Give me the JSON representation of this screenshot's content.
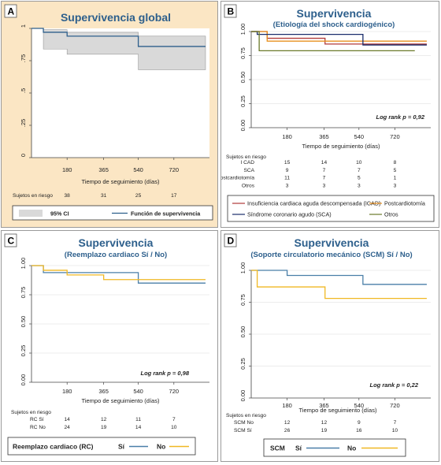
{
  "chart_data": [
    {
      "panel": "A",
      "type": "line",
      "title": "Supervivencia global",
      "xlabel": "Tiempo de seguimiento (días)",
      "xlim": [
        0,
        900
      ],
      "ylim": [
        0,
        1
      ],
      "xticks": [
        180,
        365,
        540,
        720
      ],
      "yticks": [
        "0",
        ".25",
        ".5",
        ".75",
        "1"
      ],
      "ytick_values": [
        0,
        0.25,
        0.5,
        0.75,
        1
      ],
      "series": [
        {
          "name": "Función de supervivencia",
          "color": "#2d5f8c",
          "x": [
            0,
            60,
            60,
            180,
            180,
            540,
            540,
            880
          ],
          "y": [
            1,
            1,
            0.97,
            0.97,
            0.94,
            0.94,
            0.86,
            0.86
          ]
        }
      ],
      "ci": {
        "name": "95% CI",
        "color": "#d9d9d9",
        "x": [
          0,
          60,
          60,
          180,
          180,
          540,
          540,
          880
        ],
        "lower": [
          1,
          1,
          0.84,
          0.84,
          0.8,
          0.8,
          0.68,
          0.68
        ],
        "upper": [
          1,
          1,
          0.99,
          0.99,
          0.97,
          0.97,
          0.94,
          0.94
        ]
      },
      "risk_table": {
        "title": "Sujetos en riesgo",
        "rows": [
          {
            "label": "",
            "values": [
              "38",
              "31",
              "25",
              "17"
            ]
          }
        ]
      },
      "legend": [
        "95% CI",
        "Función de supervivencia"
      ]
    },
    {
      "panel": "B",
      "type": "line",
      "title": "Supervivencia",
      "subtitle": "(Etiología del shock cardiogénico)",
      "xlabel": "Tiempo de seguimiento (días)",
      "xlim": [
        0,
        900
      ],
      "ylim": [
        0,
        1
      ],
      "xticks": [
        180,
        365,
        540,
        720
      ],
      "yticks": [
        "0.00",
        "0.25",
        "0.50",
        "0.75",
        "1.00"
      ],
      "ytick_values": [
        0,
        0.25,
        0.5,
        0.75,
        1
      ],
      "annotation": "Log rank p = 0,92",
      "series": [
        {
          "name": "Insuficiencia cardiaca aguda descompensada (ICAD)",
          "color": "#b03a3a",
          "x": [
            0,
            80,
            80,
            370,
            370,
            880
          ],
          "y": [
            1,
            1,
            0.93,
            0.93,
            0.87,
            0.87
          ]
        },
        {
          "name": "Postcardiotomía",
          "color": "#e8901e",
          "x": [
            0,
            80,
            80,
            880
          ],
          "y": [
            1,
            1,
            0.9,
            0.9
          ]
        },
        {
          "name": "Síndrome coronario agudo (SCA)",
          "color": "#1a2d6b",
          "x": [
            0,
            30,
            30,
            560,
            560,
            880
          ],
          "y": [
            1,
            1,
            0.97,
            0.97,
            0.86,
            0.86
          ]
        },
        {
          "name": "Otros",
          "color": "#6b7a2a",
          "x": [
            0,
            40,
            40,
            820
          ],
          "y": [
            1,
            1,
            0.8,
            0.8
          ]
        }
      ],
      "risk_table": {
        "title": "Sujetos en riesgo",
        "rows": [
          {
            "label": "I CAD",
            "values": [
              "15",
              "14",
              "10",
              "8"
            ]
          },
          {
            "label": "SCA",
            "values": [
              "9",
              "7",
              "7",
              "5"
            ]
          },
          {
            "label": "Postcardiotomía",
            "values": [
              "11",
              "7",
              "5",
              "1"
            ]
          },
          {
            "label": "Otros",
            "values": [
              "3",
              "3",
              "3",
              "3"
            ]
          }
        ]
      },
      "legend": [
        "Insuficiencia cardiaca aguda descompensada (ICAD)",
        "Postcardiotomía",
        "Síndrome coronario agudo (SCA)",
        "Otros"
      ]
    },
    {
      "panel": "C",
      "type": "line",
      "title": "Supervivencia",
      "subtitle": "(Reemplazo cardiaco Sí / No)",
      "xlabel": "Tiempo de seguimiento (días)",
      "xlim": [
        0,
        900
      ],
      "ylim": [
        0,
        1
      ],
      "xticks": [
        180,
        365,
        540,
        720
      ],
      "yticks": [
        "0.00",
        "0.25",
        "0.50",
        "0.75",
        "1.00"
      ],
      "ytick_values": [
        0,
        0.25,
        0.5,
        0.75,
        1
      ],
      "annotation": "Log rank p = 0,98",
      "series": [
        {
          "name": "Sí",
          "color": "#4a7fa8",
          "x": [
            0,
            60,
            60,
            540,
            540,
            880
          ],
          "y": [
            1,
            1,
            0.94,
            0.94,
            0.85,
            0.85
          ]
        },
        {
          "name": "No",
          "color": "#f0b823",
          "x": [
            0,
            60,
            60,
            180,
            180,
            365,
            365,
            880
          ],
          "y": [
            1,
            1,
            0.96,
            0.96,
            0.92,
            0.92,
            0.88,
            0.88
          ]
        }
      ],
      "risk_table": {
        "title": "Sujetos en riesgo",
        "rows": [
          {
            "label": "RC   Sí",
            "values": [
              "14",
              "12",
              "11",
              "7"
            ]
          },
          {
            "label": "RC   No",
            "values": [
              "24",
              "19",
              "14",
              "10"
            ]
          }
        ]
      },
      "legend_title": "Reemplazo cardiaco (RC)",
      "legend": [
        "Sí",
        "No"
      ]
    },
    {
      "panel": "D",
      "type": "line",
      "title": "Supervivencia",
      "subtitle": "(Soporte circulatorio mecánico (SCM) Sí / No)",
      "xlabel": "Tiempo de seguimiento (días)",
      "xlim": [
        0,
        900
      ],
      "ylim": [
        0,
        1
      ],
      "xticks": [
        180,
        365,
        540,
        720
      ],
      "yticks": [
        "0.00",
        "0.25",
        "0.50",
        "0.75",
        "1.00"
      ],
      "ytick_values": [
        0,
        0.25,
        0.5,
        0.75,
        1
      ],
      "annotation": "Log rank p = 0,22",
      "series": [
        {
          "name": "Sí",
          "color": "#4a7fa8",
          "x": [
            0,
            180,
            180,
            560,
            560,
            880
          ],
          "y": [
            1,
            1,
            0.96,
            0.96,
            0.89,
            0.89
          ]
        },
        {
          "name": "No",
          "color": "#f0b823",
          "x": [
            0,
            30,
            30,
            370,
            370,
            880
          ],
          "y": [
            1,
            1,
            0.87,
            0.87,
            0.78,
            0.78
          ]
        }
      ],
      "risk_table": {
        "title": "Sujetos en riesgo",
        "rows": [
          {
            "label": "SCM No",
            "values": [
              "12",
              "12",
              "9",
              "7"
            ]
          },
          {
            "label": "SCM Sí",
            "values": [
              "26",
              "19",
              "16",
              "10"
            ]
          }
        ]
      },
      "legend_title": "SCM",
      "legend": [
        "Sí",
        "No"
      ]
    }
  ],
  "panel_letters": [
    "A",
    "B",
    "C",
    "D"
  ]
}
